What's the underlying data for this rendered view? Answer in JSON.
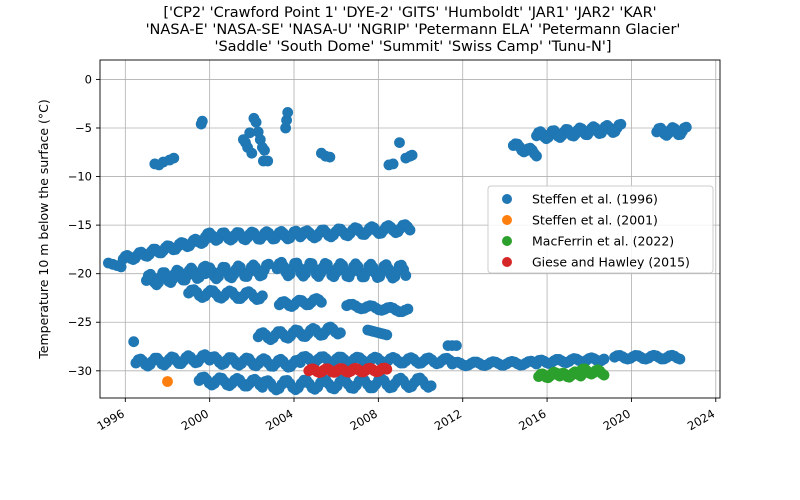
{
  "chart_data": {
    "type": "scatter",
    "title_lines": [
      "['CP2' 'Crawford Point 1' 'DYE-2' 'GITS' 'Humboldt' 'JAR1' 'JAR2' 'KAR'",
      "'NASA-E' 'NASA-SE' 'NASA-U' 'NGRIP' 'Petermann ELA' 'Petermann Glacier'",
      "'Saddle' 'South Dome' 'Summit' 'Swiss Camp' 'Tunu-N']"
    ],
    "xlabel": "",
    "ylabel": "Temperature 10 m below the surface (°C)",
    "xlim": [
      1994.8,
      2024.2
    ],
    "ylim": [
      -32.8,
      2.0
    ],
    "xticks": [
      1996,
      2000,
      2004,
      2008,
      2012,
      2016,
      2020,
      2024
    ],
    "xtick_labels": [
      "1996",
      "2000",
      "2004",
      "2008",
      "2012",
      "2016",
      "2020",
      "2024"
    ],
    "yticks": [
      0,
      -5,
      -10,
      -15,
      -20,
      -25,
      -30
    ],
    "ytick_labels": [
      "0",
      "−5",
      "−10",
      "−15",
      "−20",
      "−25",
      "−30"
    ],
    "grid": true,
    "legend_position": "center-right",
    "series": [
      {
        "name": "Steffen et al. (1996)",
        "color": "#1f77b4",
        "runs": [
          {
            "x": [
              1995.2,
              1995.8
            ],
            "y": [
              -18.9,
              -19.3
            ],
            "n": 4
          },
          {
            "x": [
              1995.9,
              1999.8
            ],
            "y": [
              -18.5,
              -16.5
            ],
            "n": 42,
            "wave": 0.3
          },
          {
            "x": [
              1999.8,
              2004.3
            ],
            "y": [
              -16.2,
              -16.0
            ],
            "n": 46,
            "wave": 0.4
          },
          {
            "x": [
              2004.4,
              2009.5
            ],
            "y": [
              -16.0,
              -15.3
            ],
            "n": 46,
            "wave": 0.4
          },
          {
            "x": [
              1997.0,
              1999.8
            ],
            "y": [
              -20.7,
              -19.8
            ],
            "n": 30,
            "wave": 0.6
          },
          {
            "x": [
              1999.8,
              2002.8
            ],
            "y": [
              -20.0,
              -19.6
            ],
            "n": 30,
            "wave": 0.6
          },
          {
            "x": [
              2003.2,
              2009.3
            ],
            "y": [
              -19.5,
              -19.8
            ],
            "n": 60,
            "wave": 0.7
          },
          {
            "x": [
              1999.0,
              2002.5
            ],
            "y": [
              -22.0,
              -22.3
            ],
            "n": 28,
            "wave": 0.4
          },
          {
            "x": [
              2003.3,
              2005.3
            ],
            "y": [
              -23.2,
              -22.8
            ],
            "n": 18,
            "wave": 0.3
          },
          {
            "x": [
              2006.5,
              2009.4
            ],
            "y": [
              -23.3,
              -23.8
            ],
            "n": 22,
            "wave": 0.2
          },
          {
            "x": [
              2002.3,
              2006.2
            ],
            "y": [
              -26.5,
              -25.8
            ],
            "n": 34,
            "wave": 0.4
          },
          {
            "x": [
              2007.5,
              2008.4
            ],
            "y": [
              -25.8,
              -26.3
            ],
            "n": 8
          },
          {
            "x": [
              1996.5,
              2000.0
            ],
            "y": [
              -29.2,
              -28.7
            ],
            "n": 32,
            "wave": 0.4
          },
          {
            "x": [
              2000.0,
              2004.3
            ],
            "y": [
              -28.9,
              -29.3
            ],
            "n": 38,
            "wave": 0.4
          },
          {
            "x": [
              2004.3,
              2011.5
            ],
            "y": [
              -28.8,
              -29.0
            ],
            "n": 60,
            "wave": 0.3
          },
          {
            "x": [
              2011.5,
              2015.5
            ],
            "y": [
              -29.3,
              -29.2
            ],
            "n": 32,
            "wave": 0.2
          },
          {
            "x": [
              2015.5,
              2018.7
            ],
            "y": [
              -29.1,
              -28.8
            ],
            "n": 28,
            "wave": 0.2
          },
          {
            "x": [
              2019.2,
              2022.3
            ],
            "y": [
              -28.6,
              -28.6
            ],
            "n": 26,
            "wave": 0.2
          },
          {
            "x": [
              1999.5,
              2002.5
            ],
            "y": [
              -31.0,
              -31.3
            ],
            "n": 26,
            "wave": 0.4
          },
          {
            "x": [
              2002.5,
              2010.5
            ],
            "y": [
              -31.5,
              -31.2
            ],
            "n": 62,
            "wave": 0.5
          },
          {
            "x": [
              2011.3,
              2011.7
            ],
            "y": [
              -27.4,
              -27.4
            ],
            "n": 3
          },
          {
            "x": [
              2014.4,
              2015.5
            ],
            "y": [
              -6.8,
              -7.6
            ],
            "n": 12,
            "wave": 0.3
          },
          {
            "x": [
              2015.5,
              2019.5
            ],
            "y": [
              -5.8,
              -5.0
            ],
            "n": 44,
            "wave": 0.4
          },
          {
            "x": [
              2021.2,
              2022.6
            ],
            "y": [
              -5.4,
              -5.3
            ],
            "n": 16,
            "wave": 0.4
          }
        ],
        "points": [
          [
            1996.4,
            -27.0
          ],
          [
            1997.4,
            -8.7
          ],
          [
            1997.6,
            -8.8
          ],
          [
            1997.8,
            -8.5
          ],
          [
            1998.1,
            -8.3
          ],
          [
            1998.3,
            -8.1
          ],
          [
            1999.6,
            -4.6
          ],
          [
            1999.65,
            -4.3
          ],
          [
            2001.6,
            -6.2
          ],
          [
            2001.7,
            -6.5
          ],
          [
            2001.8,
            -7.0
          ],
          [
            2001.9,
            -5.5
          ],
          [
            2002.0,
            -7.6
          ],
          [
            2002.1,
            -4.0
          ],
          [
            2002.2,
            -4.4
          ],
          [
            2002.3,
            -5.4
          ],
          [
            2002.4,
            -6.2
          ],
          [
            2002.5,
            -7.0
          ],
          [
            2002.6,
            -7.3
          ],
          [
            2002.55,
            -8.4
          ],
          [
            2002.75,
            -8.4
          ],
          [
            2003.6,
            -5.0
          ],
          [
            2003.65,
            -4.2
          ],
          [
            2003.7,
            -3.4
          ],
          [
            2005.3,
            -7.6
          ],
          [
            2005.5,
            -7.9
          ],
          [
            2005.7,
            -8.0
          ],
          [
            2008.5,
            -8.8
          ],
          [
            2008.7,
            -8.7
          ],
          [
            2009.0,
            -6.5
          ],
          [
            2009.3,
            -8.1
          ],
          [
            2009.5,
            -7.9
          ],
          [
            2009.6,
            -7.8
          ]
        ]
      },
      {
        "name": "Steffen et al. (2001)",
        "color": "#ff7f0e",
        "runs": [],
        "points": [
          [
            1998.0,
            -31.1
          ]
        ]
      },
      {
        "name": "MacFerrin et al. (2022)",
        "color": "#2ca02c",
        "runs": [
          {
            "x": [
              2015.6,
              2016.6
            ],
            "y": [
              -30.6,
              -30.3
            ],
            "n": 12,
            "wave": 0.25
          },
          {
            "x": [
              2016.6,
              2017.6
            ],
            "y": [
              -30.5,
              -30.3
            ],
            "n": 12,
            "wave": 0.25
          },
          {
            "x": [
              2017.6,
              2018.7
            ],
            "y": [
              -30.0,
              -30.2
            ],
            "n": 12,
            "wave": 0.25
          }
        ],
        "points": []
      },
      {
        "name": "Giese and Hawley (2015)",
        "color": "#d62728",
        "runs": [
          {
            "x": [
              2004.7,
              2008.4
            ],
            "y": [
              -30.0,
              -29.9
            ],
            "n": 38,
            "wave": 0.2
          }
        ],
        "points": []
      }
    ]
  }
}
